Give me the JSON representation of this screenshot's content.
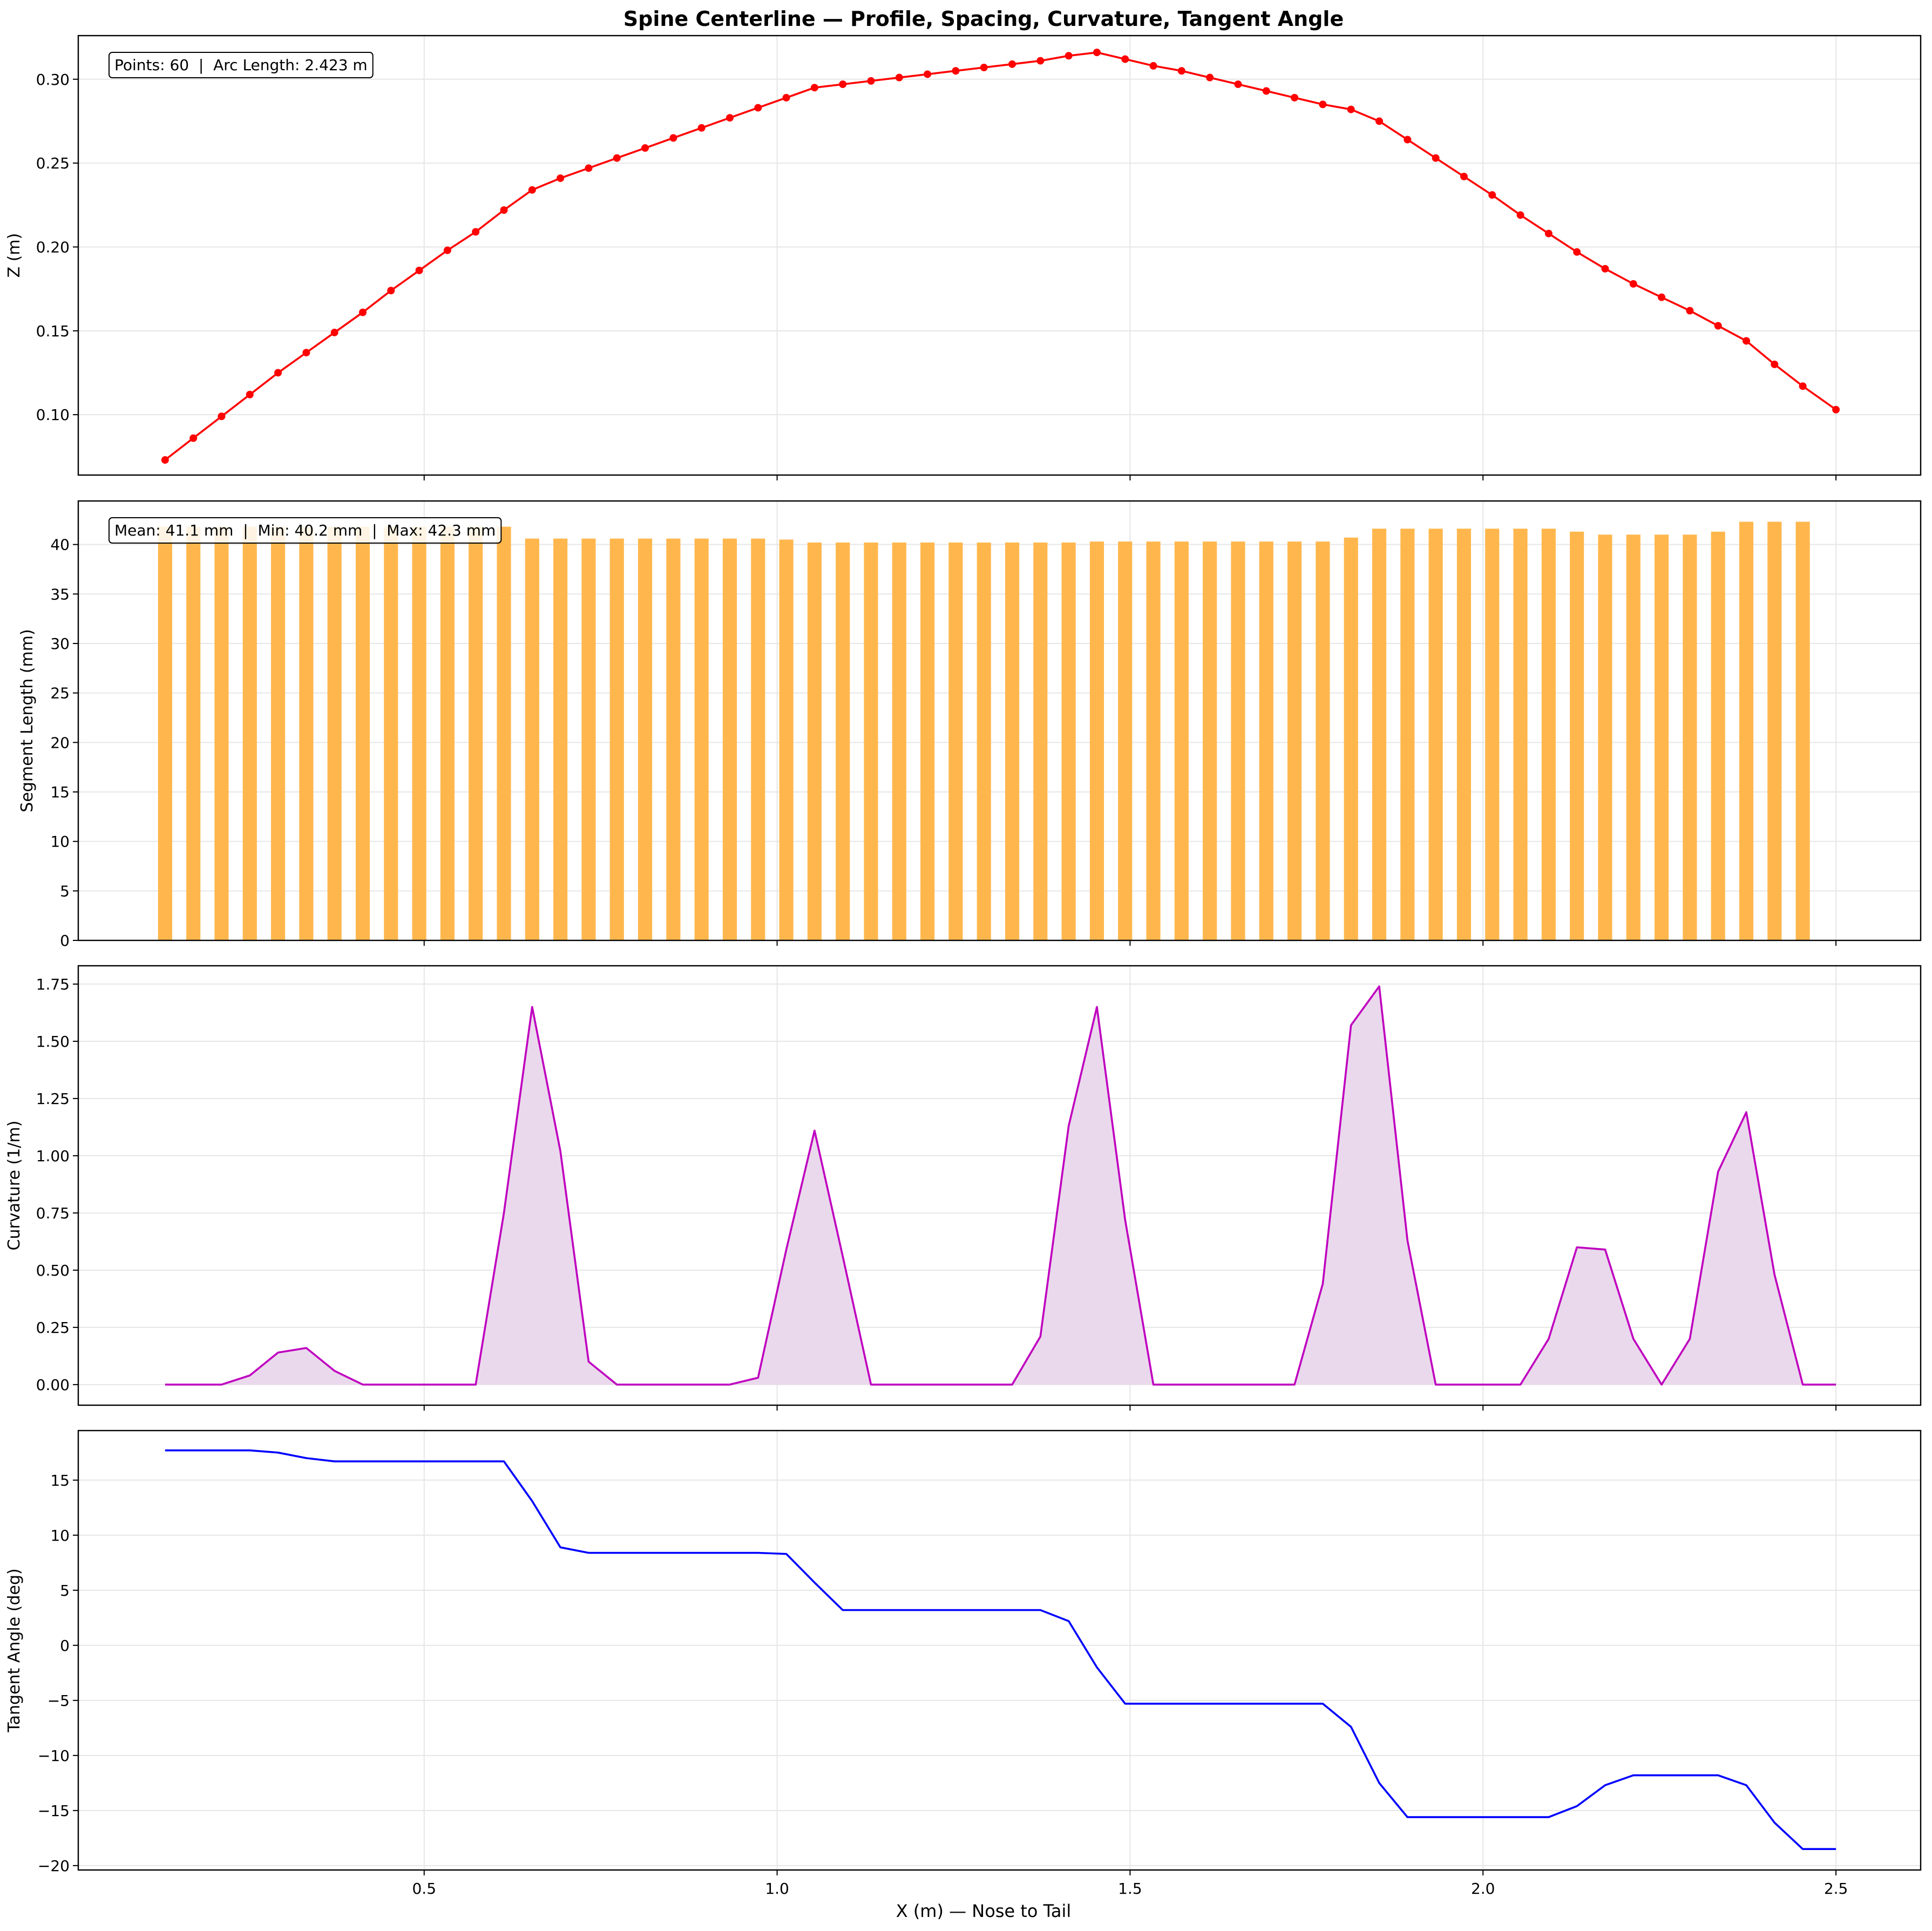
{
  "figure": {
    "title": "Spine Centerline — Profile, Spacing, Curvature, Tangent Angle",
    "xlabel": "X (m) — Nose to Tail"
  },
  "colors": {
    "profile_line": "#ff0000",
    "segment_bars": "#ffb74d",
    "curvature_line": "#bf00bf",
    "curvature_fill": "#ead9ec",
    "tangent_line": "#0000ff",
    "grid": "#e6e6e6"
  },
  "chart_data": [
    {
      "type": "line",
      "ylabel": "Z (m)",
      "annotation": "Points: 60  |  Arc Length: 2.423 m",
      "markers": true,
      "xlim": [
        0.01,
        2.62
      ],
      "ylim": [
        0.064,
        0.326
      ],
      "xticks": [
        0.5,
        1.0,
        1.5,
        2.0,
        2.5
      ],
      "yticks": [
        0.1,
        0.15,
        0.2,
        0.25,
        0.3
      ],
      "ytick_labels": [
        "0.10",
        "0.15",
        "0.20",
        "0.25",
        "0.30"
      ],
      "grid": true,
      "x": [
        0.133,
        0.173,
        0.213,
        0.253,
        0.293,
        0.333,
        0.373,
        0.413,
        0.453,
        0.493,
        0.533,
        0.573,
        0.613,
        0.653,
        0.693,
        0.733,
        0.773,
        0.813,
        0.853,
        0.893,
        0.933,
        0.973,
        1.013,
        1.053,
        1.093,
        1.133,
        1.173,
        1.213,
        1.253,
        1.293,
        1.333,
        1.373,
        1.413,
        1.453,
        1.493,
        1.533,
        1.573,
        1.613,
        1.653,
        1.693,
        1.733,
        1.773,
        1.813,
        1.853,
        1.893,
        1.933,
        1.973,
        2.013,
        2.053,
        2.093,
        2.133,
        2.173,
        2.213,
        2.253,
        2.293,
        2.333,
        2.373,
        2.413,
        2.453,
        2.5
      ],
      "y": [
        0.073,
        0.086,
        0.099,
        0.112,
        0.125,
        0.137,
        0.149,
        0.161,
        0.174,
        0.186,
        0.198,
        0.209,
        0.222,
        0.234,
        0.241,
        0.247,
        0.253,
        0.259,
        0.265,
        0.271,
        0.277,
        0.283,
        0.289,
        0.295,
        0.297,
        0.299,
        0.301,
        0.303,
        0.305,
        0.307,
        0.309,
        0.311,
        0.314,
        0.316,
        0.312,
        0.308,
        0.305,
        0.301,
        0.297,
        0.293,
        0.289,
        0.285,
        0.282,
        0.275,
        0.264,
        0.253,
        0.242,
        0.231,
        0.219,
        0.208,
        0.197,
        0.187,
        0.178,
        0.17,
        0.162,
        0.153,
        0.144,
        0.13,
        0.117,
        0.103
      ]
    },
    {
      "type": "bar",
      "ylabel": "Segment Length (mm)",
      "annotation": "Mean: 41.1 mm  |  Min: 40.2 mm  |  Max: 42.3 mm",
      "xlim": [
        0.01,
        2.62
      ],
      "ylim": [
        0,
        44.4
      ],
      "xticks": [
        0.5,
        1.0,
        1.5,
        2.0,
        2.5
      ],
      "yticks": [
        0,
        5,
        10,
        15,
        20,
        25,
        30,
        35,
        40
      ],
      "ytick_labels": [
        "0",
        "5",
        "10",
        "15",
        "20",
        "25",
        "30",
        "35",
        "40"
      ],
      "grid": true,
      "bar_width": 0.02,
      "x": [
        0.133,
        0.173,
        0.213,
        0.253,
        0.293,
        0.333,
        0.373,
        0.413,
        0.453,
        0.493,
        0.533,
        0.573,
        0.613,
        0.653,
        0.693,
        0.733,
        0.773,
        0.813,
        0.853,
        0.893,
        0.933,
        0.973,
        1.013,
        1.053,
        1.093,
        1.133,
        1.173,
        1.213,
        1.253,
        1.293,
        1.333,
        1.373,
        1.413,
        1.453,
        1.493,
        1.533,
        1.573,
        1.613,
        1.653,
        1.693,
        1.733,
        1.773,
        1.813,
        1.853,
        1.893,
        1.933,
        1.973,
        2.013,
        2.053,
        2.093,
        2.133,
        2.173,
        2.213,
        2.253,
        2.293,
        2.333,
        2.373,
        2.413,
        2.453
      ],
      "values": [
        41.8,
        41.8,
        41.8,
        41.8,
        41.8,
        41.8,
        41.8,
        41.8,
        41.8,
        41.8,
        41.8,
        41.8,
        41.8,
        40.6,
        40.6,
        40.6,
        40.6,
        40.6,
        40.6,
        40.6,
        40.6,
        40.6,
        40.5,
        40.2,
        40.2,
        40.2,
        40.2,
        40.2,
        40.2,
        40.2,
        40.2,
        40.2,
        40.2,
        40.3,
        40.3,
        40.3,
        40.3,
        40.3,
        40.3,
        40.3,
        40.3,
        40.3,
        40.7,
        41.6,
        41.6,
        41.6,
        41.6,
        41.6,
        41.6,
        41.6,
        41.3,
        41.0,
        41.0,
        41.0,
        41.0,
        41.3,
        42.3,
        42.3,
        42.3
      ]
    },
    {
      "type": "area",
      "ylabel": "Curvature (1/m)",
      "xlim": [
        0.01,
        2.62
      ],
      "ylim": [
        -0.09,
        1.83
      ],
      "xticks": [
        0.5,
        1.0,
        1.5,
        2.0,
        2.5
      ],
      "yticks": [
        0.0,
        0.25,
        0.5,
        0.75,
        1.0,
        1.25,
        1.5,
        1.75
      ],
      "ytick_labels": [
        "0.00",
        "0.25",
        "0.50",
        "0.75",
        "1.00",
        "1.25",
        "1.50",
        "1.75"
      ],
      "grid": true,
      "x": [
        0.133,
        0.173,
        0.213,
        0.253,
        0.293,
        0.333,
        0.373,
        0.413,
        0.453,
        0.493,
        0.533,
        0.573,
        0.613,
        0.653,
        0.693,
        0.733,
        0.773,
        0.813,
        0.853,
        0.893,
        0.933,
        0.973,
        1.013,
        1.053,
        1.093,
        1.133,
        1.173,
        1.213,
        1.253,
        1.293,
        1.333,
        1.373,
        1.413,
        1.453,
        1.493,
        1.533,
        1.573,
        1.613,
        1.653,
        1.693,
        1.733,
        1.773,
        1.813,
        1.853,
        1.893,
        1.933,
        1.973,
        2.013,
        2.053,
        2.093,
        2.133,
        2.173,
        2.213,
        2.253,
        2.293,
        2.333,
        2.373,
        2.413,
        2.453,
        2.5
      ],
      "y": [
        0,
        0,
        0,
        0.04,
        0.14,
        0.16,
        0.06,
        0,
        0,
        0,
        0,
        0,
        0.75,
        1.65,
        1.02,
        0.1,
        0,
        0,
        0,
        0,
        0,
        0.03,
        0.59,
        1.11,
        0.56,
        0,
        0,
        0,
        0,
        0,
        0,
        0.21,
        1.13,
        1.65,
        0.72,
        0,
        0,
        0,
        0,
        0,
        0,
        0.44,
        1.57,
        1.74,
        0.63,
        0,
        0,
        0,
        0,
        0.2,
        0.6,
        0.59,
        0.2,
        0,
        0.2,
        0.93,
        1.19,
        0.48,
        0,
        0
      ]
    },
    {
      "type": "line",
      "ylabel": "Tangent Angle (deg)",
      "xlim": [
        0.01,
        2.62
      ],
      "ylim": [
        -20.4,
        19.5
      ],
      "xticks": [
        0.5,
        1.0,
        1.5,
        2.0,
        2.5
      ],
      "xtick_labels": [
        "0.5",
        "1.0",
        "1.5",
        "2.0",
        "2.5"
      ],
      "yticks": [
        -20,
        -15,
        -10,
        -5,
        0,
        5,
        10,
        15
      ],
      "ytick_labels": [
        "−20",
        "−15",
        "−10",
        "−5",
        "0",
        "5",
        "10",
        "15"
      ],
      "grid": true,
      "x": [
        0.133,
        0.173,
        0.213,
        0.253,
        0.293,
        0.333,
        0.373,
        0.413,
        0.453,
        0.493,
        0.533,
        0.573,
        0.613,
        0.653,
        0.693,
        0.733,
        0.773,
        0.813,
        0.853,
        0.893,
        0.933,
        0.973,
        1.013,
        1.053,
        1.093,
        1.133,
        1.173,
        1.213,
        1.253,
        1.293,
        1.333,
        1.373,
        1.413,
        1.453,
        1.493,
        1.533,
        1.573,
        1.613,
        1.653,
        1.693,
        1.733,
        1.773,
        1.813,
        1.853,
        1.893,
        1.933,
        1.973,
        2.013,
        2.053,
        2.093,
        2.133,
        2.173,
        2.213,
        2.253,
        2.293,
        2.333,
        2.373,
        2.413,
        2.453,
        2.5
      ],
      "y": [
        17.7,
        17.7,
        17.7,
        17.7,
        17.5,
        17.0,
        16.7,
        16.7,
        16.7,
        16.7,
        16.7,
        16.7,
        16.7,
        13.1,
        8.9,
        8.4,
        8.4,
        8.4,
        8.4,
        8.4,
        8.4,
        8.4,
        8.3,
        5.7,
        3.2,
        3.2,
        3.2,
        3.2,
        3.2,
        3.2,
        3.2,
        3.2,
        2.2,
        -2.0,
        -5.3,
        -5.3,
        -5.3,
        -5.3,
        -5.3,
        -5.3,
        -5.3,
        -5.3,
        -7.4,
        -12.5,
        -15.6,
        -15.6,
        -15.6,
        -15.6,
        -15.6,
        -15.6,
        -14.6,
        -12.7,
        -11.8,
        -11.8,
        -11.8,
        -11.8,
        -12.7,
        -16.1,
        -18.5,
        -18.5
      ]
    }
  ]
}
